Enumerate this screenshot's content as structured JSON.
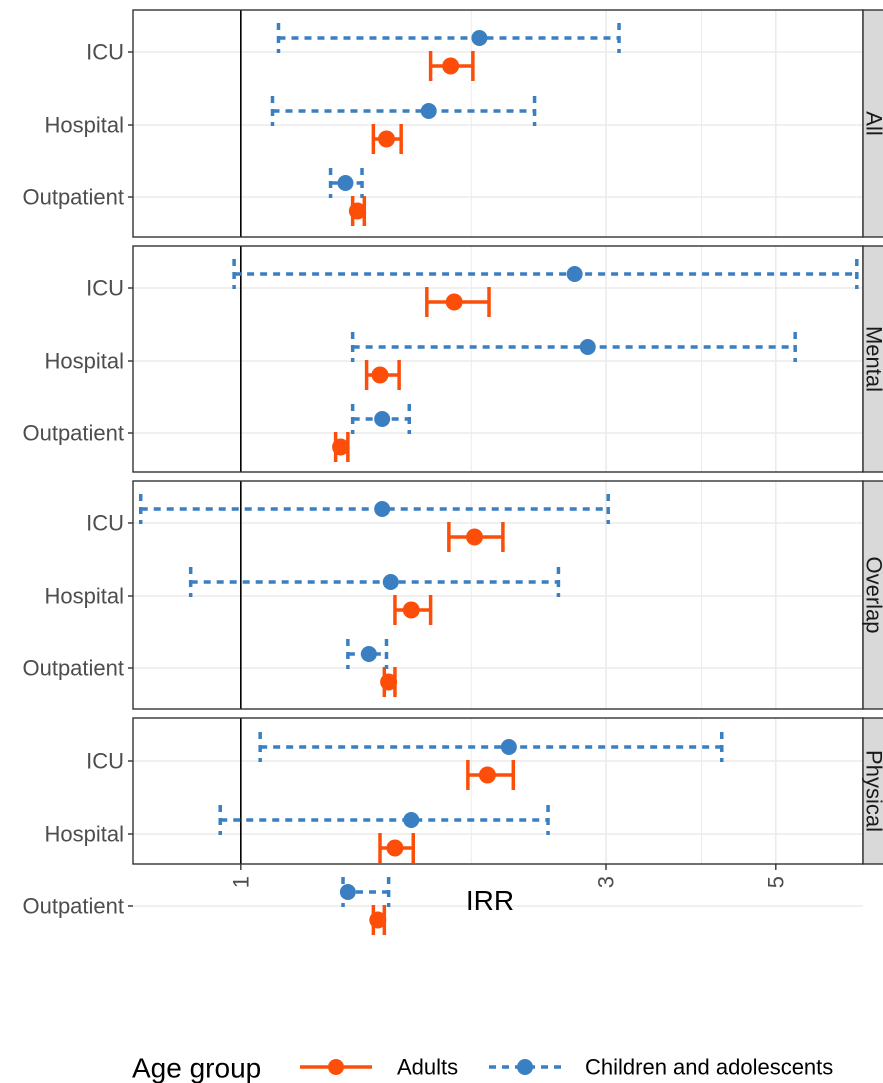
{
  "chart_data": {
    "type": "forest",
    "xlabel": "IRR",
    "x_scale": "log",
    "xlim": [
      0.723,
      6.5
    ],
    "x_ticks": [
      1,
      3,
      5
    ],
    "reference_line": 1,
    "categories": [
      "Outpatient",
      "Hospital",
      "ICU"
    ],
    "facets": [
      {
        "name": "All",
        "series": [
          {
            "name": "Adults",
            "points": [
              {
                "category": "ICU",
                "estimate": 1.88,
                "lower": 1.77,
                "upper": 2.01
              },
              {
                "category": "Hospital",
                "estimate": 1.55,
                "lower": 1.49,
                "upper": 1.62
              },
              {
                "category": "Outpatient",
                "estimate": 1.42,
                "lower": 1.4,
                "upper": 1.45
              }
            ]
          },
          {
            "name": "Children and adolescents",
            "points": [
              {
                "category": "ICU",
                "estimate": 2.05,
                "lower": 1.12,
                "upper": 3.12
              },
              {
                "category": "Hospital",
                "estimate": 1.76,
                "lower": 1.1,
                "upper": 2.42
              },
              {
                "category": "Outpatient",
                "estimate": 1.37,
                "lower": 1.31,
                "upper": 1.44
              }
            ]
          }
        ]
      },
      {
        "name": "Mental",
        "series": [
          {
            "name": "Adults",
            "points": [
              {
                "category": "ICU",
                "estimate": 1.9,
                "lower": 1.75,
                "upper": 2.11
              },
              {
                "category": "Hospital",
                "estimate": 1.52,
                "lower": 1.46,
                "upper": 1.61
              },
              {
                "category": "Outpatient",
                "estimate": 1.35,
                "lower": 1.33,
                "upper": 1.38
              }
            ]
          },
          {
            "name": "Children and adolescents",
            "points": [
              {
                "category": "ICU",
                "estimate": 2.73,
                "lower": 0.98,
                "upper": 6.38
              },
              {
                "category": "Hospital",
                "estimate": 2.84,
                "lower": 1.4,
                "upper": 5.3
              },
              {
                "category": "Outpatient",
                "estimate": 1.53,
                "lower": 1.4,
                "upper": 1.66
              }
            ]
          }
        ]
      },
      {
        "name": "Overlap",
        "series": [
          {
            "name": "Adults",
            "points": [
              {
                "category": "ICU",
                "estimate": 2.02,
                "lower": 1.87,
                "upper": 2.2
              },
              {
                "category": "Hospital",
                "estimate": 1.67,
                "lower": 1.59,
                "upper": 1.77
              },
              {
                "category": "Outpatient",
                "estimate": 1.56,
                "lower": 1.54,
                "upper": 1.59
              }
            ]
          },
          {
            "name": "Children and adolescents",
            "points": [
              {
                "category": "ICU",
                "estimate": 1.53,
                "lower": 0.74,
                "upper": 3.02
              },
              {
                "category": "Hospital",
                "estimate": 1.57,
                "lower": 0.86,
                "upper": 2.6
              },
              {
                "category": "Outpatient",
                "estimate": 1.47,
                "lower": 1.38,
                "upper": 1.55
              }
            ]
          }
        ]
      },
      {
        "name": "Physical",
        "series": [
          {
            "name": "Adults",
            "points": [
              {
                "category": "ICU",
                "estimate": 2.1,
                "lower": 1.98,
                "upper": 2.27
              },
              {
                "category": "Hospital",
                "estimate": 1.59,
                "lower": 1.52,
                "upper": 1.68
              },
              {
                "category": "Outpatient",
                "estimate": 1.51,
                "lower": 1.49,
                "upper": 1.54
              }
            ]
          },
          {
            "name": "Children and adolescents",
            "points": [
              {
                "category": "ICU",
                "estimate": 2.24,
                "lower": 1.06,
                "upper": 4.25
              },
              {
                "category": "Hospital",
                "estimate": 1.67,
                "lower": 0.94,
                "upper": 2.52
              },
              {
                "category": "Outpatient",
                "estimate": 1.38,
                "lower": 1.36,
                "upper": 1.56
              }
            ]
          }
        ]
      }
    ],
    "legend": {
      "title": "Age group",
      "placement": "bottom",
      "items": [
        {
          "label": "Adults",
          "color": "#fc4e08",
          "linetype": "solid"
        },
        {
          "label": "Children and adolescents",
          "color": "#3a7fc1",
          "linetype": "dashed"
        }
      ]
    },
    "grid": true
  },
  "colors": {
    "adults": "#fc4e08",
    "children": "#3a7fc1",
    "strip_background": "#d9d9d9",
    "grid": "#ebebeb",
    "panel_border": "#333333",
    "reference_line": "#000000"
  }
}
